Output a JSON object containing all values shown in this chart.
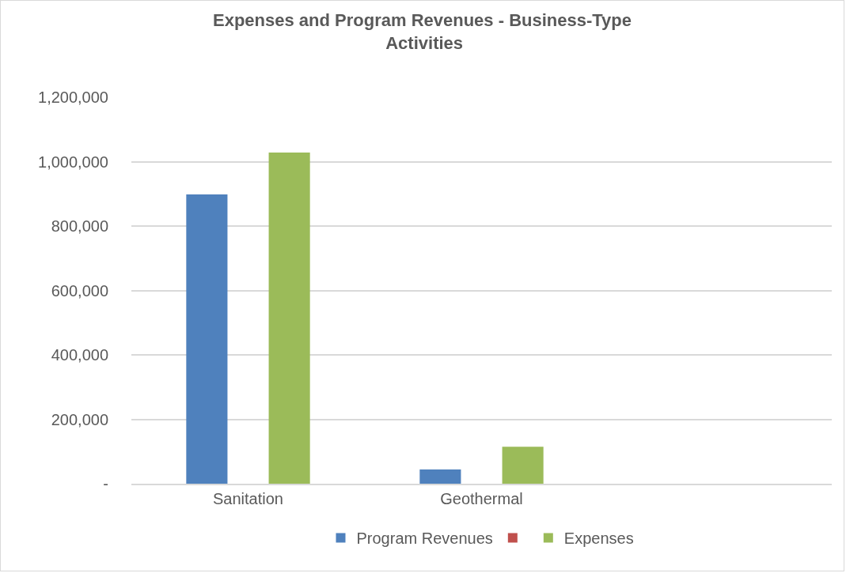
{
  "chart_data": {
    "type": "bar",
    "title": "Expenses and Program Revenues - Business-Type Activities",
    "categories": [
      "Sanitation",
      "Geothermal",
      null
    ],
    "series": [
      {
        "name": "Program Revenues",
        "color": "#4f81bd",
        "values": [
          898000,
          44000,
          null
        ]
      },
      {
        "color": "#c0504d",
        "values": [
          null,
          null,
          null
        ]
      },
      {
        "name": "Expenses",
        "color": "#9bbb59",
        "values": [
          1028000,
          115000,
          null
        ]
      }
    ],
    "ylim": [
      0,
      1200000
    ],
    "yticks": [
      {
        "value": 0,
        "label": "-"
      },
      {
        "value": 200000,
        "label": "200,000"
      },
      {
        "value": 400000,
        "label": "400,000"
      },
      {
        "value": 600000,
        "label": "600,000"
      },
      {
        "value": 800000,
        "label": "800,000"
      },
      {
        "value": 1000000,
        "label": "1,000,000"
      },
      {
        "value": 1200000,
        "label": "1,200,000"
      }
    ],
    "grid": "y",
    "legend": "bottom"
  }
}
